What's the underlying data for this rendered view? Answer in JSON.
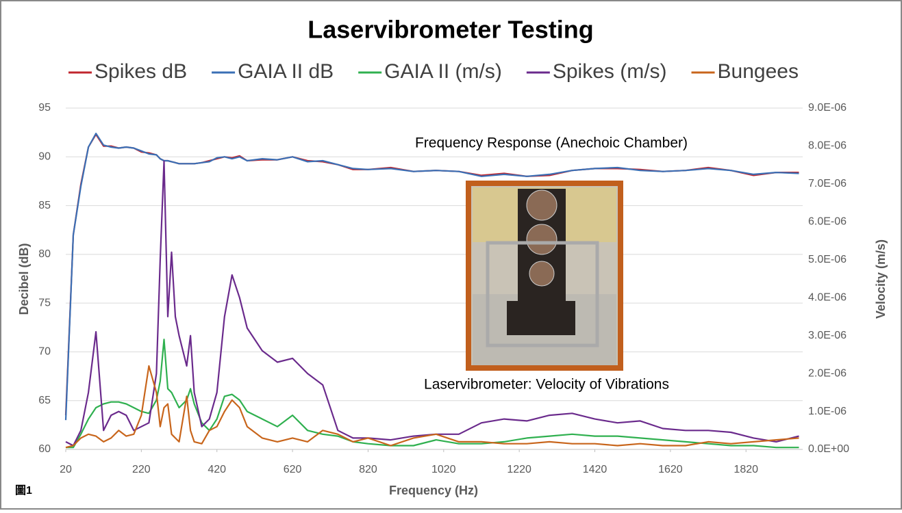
{
  "chart_data": {
    "type": "line",
    "title": "Laservibrometer Testing",
    "x_label": "Frequency (Hz)",
    "y_label": "Decibel (dB)",
    "y2_label": "Velocity (m/s)",
    "annotations": [
      "Frequency Response (Anechoic Chamber)",
      "Laservibrometer: Velocity of Vibrations"
    ],
    "figure_label": "圖1",
    "x": [
      20,
      40,
      60,
      80,
      100,
      120,
      140,
      160,
      180,
      200,
      220,
      240,
      260,
      270,
      280,
      290,
      300,
      310,
      320,
      340,
      350,
      360,
      380,
      400,
      420,
      440,
      460,
      480,
      500,
      540,
      580,
      620,
      660,
      700,
      740,
      780,
      820,
      880,
      940,
      1000,
      1060,
      1120,
      1180,
      1240,
      1300,
      1360,
      1420,
      1480,
      1540,
      1600,
      1660,
      1720,
      1780,
      1840,
      1900,
      1960
    ],
    "xlim": [
      20,
      1970
    ],
    "xticks": [
      20,
      220,
      420,
      620,
      820,
      1020,
      1220,
      1420,
      1620,
      1820
    ],
    "ylim": [
      60,
      95
    ],
    "yticks": [
      60,
      65,
      70,
      75,
      80,
      85,
      90,
      95
    ],
    "y2lim": [
      0,
      9e-06
    ],
    "y2ticks": [
      {
        "value": 0,
        "label": "0.0E+00"
      },
      {
        "value": 1e-06,
        "label": "1.0E-06"
      },
      {
        "value": 2e-06,
        "label": "2.0E-06"
      },
      {
        "value": 3e-06,
        "label": "3.0E-06"
      },
      {
        "value": 4e-06,
        "label": "4.0E-06"
      },
      {
        "value": 5e-06,
        "label": "5.0E-06"
      },
      {
        "value": 6e-06,
        "label": "6.0E-06"
      },
      {
        "value": 7e-06,
        "label": "7.0E-06"
      },
      {
        "value": 8e-06,
        "label": "8.0E-06"
      },
      {
        "value": 9e-06,
        "label": "9.0E-06"
      }
    ],
    "grid": true,
    "series": [
      {
        "name": "Spikes dB",
        "color": "#c0262d",
        "values": [
          63.5,
          82,
          87.2,
          91,
          92.3,
          91.1,
          91.1,
          90.9,
          91,
          90.9,
          90.5,
          90.4,
          90.2,
          89.8,
          89.6,
          89.6,
          89.5,
          89.4,
          89.3,
          89.3,
          89.3,
          89.3,
          89.4,
          89.6,
          89.8,
          90,
          89.9,
          90.1,
          89.6,
          89.7,
          89.7,
          90,
          89.6,
          89.5,
          89.2,
          88.7,
          88.7,
          88.9,
          88.5,
          88.6,
          88.5,
          88.1,
          88.3,
          88,
          88.1,
          88.6,
          88.8,
          88.8,
          88.7,
          88.5,
          88.6,
          88.9,
          88.6,
          88.1,
          88.4,
          88.4
        ]
      },
      {
        "name": "GAIA II dB",
        "color": "#3a6fb5",
        "values": [
          63,
          82,
          87,
          91,
          92.4,
          91.2,
          91,
          90.9,
          91,
          90.9,
          90.6,
          90.3,
          90.2,
          89.8,
          89.6,
          89.6,
          89.5,
          89.4,
          89.3,
          89.3,
          89.3,
          89.3,
          89.4,
          89.5,
          89.9,
          90,
          89.8,
          90,
          89.6,
          89.8,
          89.7,
          90,
          89.5,
          89.6,
          89.2,
          88.8,
          88.7,
          88.8,
          88.5,
          88.6,
          88.5,
          88,
          88.2,
          88,
          88.2,
          88.6,
          88.8,
          88.9,
          88.6,
          88.5,
          88.6,
          88.8,
          88.6,
          88.2,
          88.4,
          88.3
        ]
      },
      {
        "name": "GAIA II (m/s)",
        "color": "#2fb04f",
        "axis": "y2",
        "values": [
          5e-08,
          5e-08,
          4e-07,
          8e-07,
          1.1e-06,
          1.2e-06,
          1.25e-06,
          1.25e-06,
          1.2e-06,
          1.1e-06,
          1e-06,
          9.5e-07,
          1.3e-06,
          1.8e-06,
          2.9e-06,
          1.6e-06,
          1.5e-06,
          1.3e-06,
          1.1e-06,
          1.3e-06,
          1.6e-06,
          1.2e-06,
          7e-07,
          5e-07,
          8e-07,
          1.4e-06,
          1.45e-06,
          1.3e-06,
          1e-06,
          8e-07,
          6e-07,
          9e-07,
          5e-07,
          4e-07,
          3.5e-07,
          2e-07,
          1.5e-07,
          1e-07,
          1e-07,
          2.5e-07,
          1.5e-07,
          1.5e-07,
          2e-07,
          3e-07,
          3.5e-07,
          4e-07,
          3.5e-07,
          3.5e-07,
          3e-07,
          2.5e-07,
          2e-07,
          1.5e-07,
          1e-07,
          1e-07,
          5e-08,
          5e-08
        ]
      },
      {
        "name": "Spikes (m/s)",
        "color": "#6a2a8c",
        "axis": "y2",
        "values": [
          2e-07,
          1e-07,
          5e-07,
          1.5e-06,
          3.1e-06,
          5e-07,
          9e-07,
          1e-06,
          9e-07,
          5e-07,
          6e-07,
          7e-07,
          2e-06,
          5e-06,
          7.6e-06,
          3.5e-06,
          5.2e-06,
          3.5e-06,
          3e-06,
          2.2e-06,
          3e-06,
          1.5e-06,
          6e-07,
          8e-07,
          1.5e-06,
          3.5e-06,
          4.6e-06,
          4e-06,
          3.2e-06,
          2.6e-06,
          2.3e-06,
          2.4e-06,
          2e-06,
          1.7e-06,
          5e-07,
          3e-07,
          3e-07,
          2.5e-07,
          3.5e-07,
          4e-07,
          4e-07,
          7e-07,
          8e-07,
          7.5e-07,
          9e-07,
          9.5e-07,
          8e-07,
          7e-07,
          7.5e-07,
          5.5e-07,
          5e-07,
          5e-07,
          4.5e-07,
          3e-07,
          2e-07,
          3.5e-07
        ]
      },
      {
        "name": "Bungees",
        "color": "#c8651b",
        "axis": "y2",
        "values": [
          5e-08,
          1e-07,
          3e-07,
          4e-07,
          3.5e-07,
          2e-07,
          3e-07,
          5e-07,
          3.5e-07,
          4e-07,
          9e-07,
          2.2e-06,
          1.5e-06,
          6e-07,
          1.1e-06,
          1.2e-06,
          4e-07,
          3e-07,
          2e-07,
          1.4e-06,
          5e-07,
          2e-07,
          1.5e-07,
          5e-07,
          6e-07,
          1e-06,
          1.3e-06,
          1.1e-06,
          6e-07,
          3e-07,
          2e-07,
          3e-07,
          2e-07,
          5e-07,
          4e-07,
          2e-07,
          3e-07,
          1e-07,
          3e-07,
          4e-07,
          2e-07,
          2e-07,
          1.5e-07,
          1.5e-07,
          2e-07,
          1.5e-07,
          1.5e-07,
          1e-07,
          1.5e-07,
          1e-07,
          1e-07,
          2e-07,
          1.5e-07,
          2e-07,
          2.5e-07,
          3e-07
        ]
      }
    ]
  }
}
